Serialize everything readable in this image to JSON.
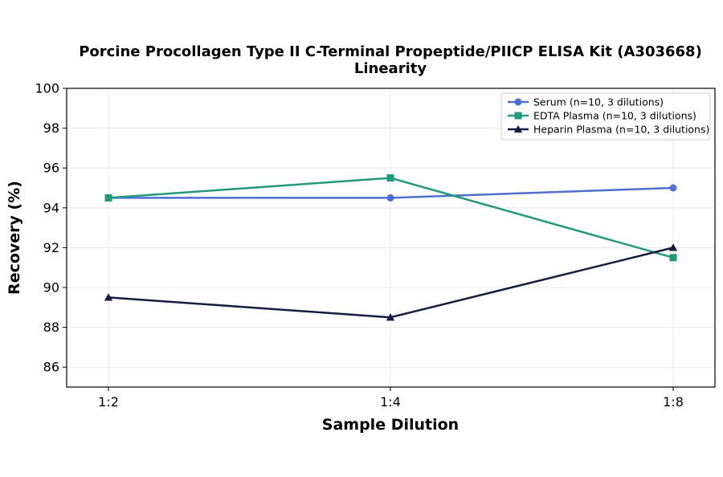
{
  "chart_data": {
    "type": "line",
    "title": "Porcine Procollagen Type II C-Terminal Propeptide/PIICP ELISA Kit (A303668)",
    "subtitle": "Linearity",
    "xlabel": "Sample Dilution",
    "ylabel": "Recovery (%)",
    "categories": [
      "1:2",
      "1:4",
      "1:8"
    ],
    "ylim": [
      85,
      100
    ],
    "yticks": [
      86,
      88,
      90,
      92,
      94,
      96,
      98,
      100
    ],
    "grid": true,
    "legend_position": "top-right",
    "series": [
      {
        "name": "Serum (n=10, 3 dilutions)",
        "values": [
          94.5,
          94.5,
          95.0
        ],
        "color": "#4f6fcf",
        "marker": "circle"
      },
      {
        "name": "EDTA Plasma (n=10, 3 dilutions)",
        "values": [
          94.5,
          95.5,
          91.5
        ],
        "color": "#22997a",
        "marker": "square"
      },
      {
        "name": "Heparin Plasma (n=10, 3 dilutions)",
        "values": [
          89.5,
          88.5,
          92.0
        ],
        "color": "#151c40",
        "marker": "triangle"
      }
    ]
  }
}
